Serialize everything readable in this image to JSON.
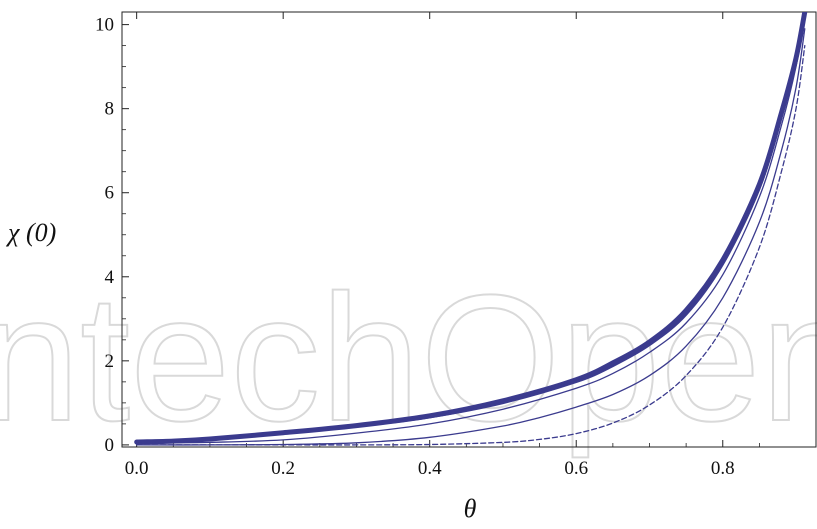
{
  "watermark": {
    "text": "IntechOpen",
    "color": "#d9d9d9"
  },
  "chart_data": {
    "type": "line",
    "title": "",
    "xlabel": "θ",
    "ylabel": "χ (0)",
    "xlim": [
      -0.02,
      0.93
    ],
    "ylim": [
      -0.05,
      10.3
    ],
    "x_ticks": [
      0.0,
      0.2,
      0.4,
      0.6,
      0.8
    ],
    "x_tick_labels": [
      "0.0",
      "0.2",
      "0.4",
      "0.6",
      "0.8"
    ],
    "y_ticks": [
      0,
      2,
      4,
      6,
      8,
      10
    ],
    "y_tick_labels": [
      "0",
      "2",
      "4",
      "6",
      "8",
      "10"
    ],
    "grid": false,
    "legend": "none",
    "line_color": "#3b3b8e",
    "series": [
      {
        "style": "thick",
        "x": [
          0.0,
          0.05,
          0.1,
          0.2,
          0.3,
          0.4,
          0.5,
          0.6,
          0.65,
          0.7,
          0.75,
          0.8,
          0.85,
          0.88,
          0.9,
          0.912
        ],
        "y": [
          0.07,
          0.09,
          0.14,
          0.29,
          0.46,
          0.69,
          1.05,
          1.55,
          1.95,
          2.45,
          3.2,
          4.4,
          6.2,
          7.9,
          9.2,
          10.3
        ]
      },
      {
        "style": "medium",
        "x": [
          0.0,
          0.05,
          0.1,
          0.2,
          0.3,
          0.4,
          0.5,
          0.6,
          0.65,
          0.7,
          0.75,
          0.8,
          0.85,
          0.88,
          0.9,
          0.912
        ],
        "y": [
          0.07,
          0.08,
          0.13,
          0.27,
          0.44,
          0.66,
          1.0,
          1.5,
          1.88,
          2.38,
          3.1,
          4.3,
          6.1,
          7.8,
          9.1,
          10.3
        ]
      },
      {
        "style": "thin",
        "x": [
          0.0,
          0.05,
          0.1,
          0.2,
          0.3,
          0.4,
          0.5,
          0.6,
          0.65,
          0.7,
          0.75,
          0.8,
          0.85,
          0.88,
          0.9,
          0.912
        ],
        "y": [
          0.05,
          0.05,
          0.06,
          0.12,
          0.28,
          0.5,
          0.85,
          1.35,
          1.7,
          2.2,
          2.9,
          4.05,
          5.9,
          7.6,
          9.0,
          10.2
        ]
      },
      {
        "style": "thin",
        "x": [
          0.0,
          0.1,
          0.2,
          0.3,
          0.4,
          0.5,
          0.55,
          0.6,
          0.65,
          0.7,
          0.75,
          0.8,
          0.85,
          0.88,
          0.9,
          0.912
        ],
        "y": [
          0.0,
          0.0,
          0.01,
          0.05,
          0.18,
          0.45,
          0.65,
          0.9,
          1.2,
          1.65,
          2.35,
          3.5,
          5.3,
          7.0,
          8.5,
          9.9
        ]
      },
      {
        "style": "dashed",
        "x": [
          0.0,
          0.2,
          0.3,
          0.4,
          0.5,
          0.55,
          0.6,
          0.65,
          0.7,
          0.75,
          0.8,
          0.85,
          0.88,
          0.9,
          0.912
        ],
        "y": [
          0.0,
          0.0,
          0.0,
          0.01,
          0.06,
          0.13,
          0.27,
          0.52,
          0.95,
          1.65,
          2.8,
          4.7,
          6.5,
          8.0,
          9.5
        ]
      }
    ]
  }
}
